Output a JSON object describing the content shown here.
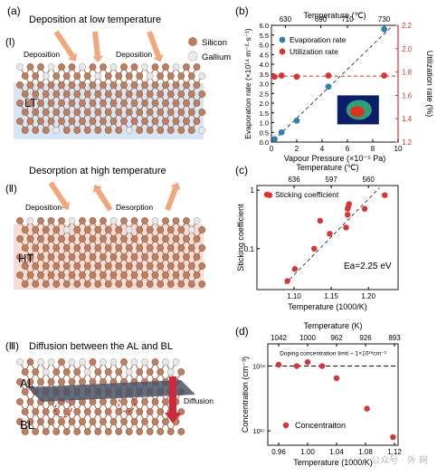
{
  "panel_letters": {
    "a": "(a)",
    "b": "(b)",
    "c": "(c)",
    "d": "(d)"
  },
  "schematic": {
    "row1": {
      "numeral": "(Ⅰ)",
      "title": "Deposition at low temperature",
      "arrow_left": "Deposition",
      "arrow_right": "Deposition",
      "layer": "LT"
    },
    "legend": {
      "silicon": "Silicon",
      "gallium": "Gallium"
    },
    "row2": {
      "numeral": "(Ⅱ)",
      "title": "Desorption at high temperature",
      "arrow_left": "Deposition",
      "arrow_right": "Desorption",
      "layer": "HT"
    },
    "row3": {
      "numeral": "(Ⅲ)",
      "title": "Diffusion between the AL and BL",
      "layer_top": "AL",
      "layer_bottom": "BL",
      "diffusion_label": "Diffusion"
    }
  },
  "colors": {
    "silicon": "#c07f5c",
    "gallium": "#e8e8e8",
    "red": "#dd3232",
    "blue": "#2f7fb0",
    "lt_band": "#d6e6f4",
    "ht_band": "#f6ddd6",
    "arrow": "#f2a77a"
  },
  "watermark": "公众号 · 外 网",
  "chart_data": [
    {
      "id": "b",
      "type": "scatter",
      "top_axis_label": "Temperature (℃)",
      "top_ticks": [
        "630",
        "690",
        "710",
        "730"
      ],
      "xlabel": "Vapour Pressure (×10⁻⁵ Pa)",
      "xlim": [
        0,
        10
      ],
      "x_ticks": [
        "0",
        "2",
        "4",
        "6",
        "8",
        "10"
      ],
      "ylabel": "Evaporation rate (×10¹⁴ m⁻²·s⁻¹)",
      "ylim": [
        0,
        6.0
      ],
      "y_ticks": [
        "0.0",
        "0.5",
        "1.0",
        "1.5",
        "2.0",
        "2.5",
        "3.0",
        "3.5",
        "4.0",
        "4.5",
        "5.0",
        "5.5",
        "6.0"
      ],
      "y2label": "Utilization rate (%)",
      "y2lim": [
        1.2,
        2.2
      ],
      "y2_ticks": [
        "1.2",
        "1.4",
        "1.6",
        "1.8",
        "2.0",
        "2.2"
      ],
      "legend_position": "top-left",
      "series": [
        {
          "name": "Evaporation rate",
          "axis": "left",
          "x": [
            0.25,
            0.8,
            2.0,
            4.5,
            8.9
          ],
          "y": [
            0.15,
            0.5,
            1.1,
            2.85,
            5.8
          ]
        },
        {
          "name": "Utilization rate",
          "axis": "right",
          "x": [
            0.25,
            0.8,
            2.0,
            4.5,
            8.9
          ],
          "y": [
            1.76,
            1.77,
            1.76,
            1.77,
            1.77
          ]
        }
      ]
    },
    {
      "id": "c",
      "type": "scatter",
      "top_axis_label": "Temperature (℃)",
      "top_ticks": [
        "636",
        "597",
        "560"
      ],
      "xlabel": "Temperature (1000/K)",
      "xlim": [
        1.05,
        1.24
      ],
      "x_ticks": [
        "1.10",
        "1.15",
        "1.20"
      ],
      "ylabel": "Sticking coefficient",
      "ylim": [
        0.02,
        1.2
      ],
      "yscale": "log",
      "y_ticks": [
        "0.1",
        "1"
      ],
      "legend_position": "top-left",
      "annotation": "Ea=2.25 eV",
      "series": [
        {
          "name": "Sticking coefficient",
          "x": [
            1.067,
            1.091,
            1.101,
            1.127,
            1.135,
            1.148,
            1.17,
            1.172,
            1.172,
            1.173,
            1.174,
            1.195,
            1.222
          ],
          "y": [
            0.82,
            0.028,
            0.045,
            0.1,
            0.3,
            0.18,
            0.23,
            0.38,
            0.48,
            0.52,
            0.58,
            0.48,
            0.82
          ]
        }
      ]
    },
    {
      "id": "d",
      "type": "scatter",
      "top_axis_label": "Temperature (K)",
      "top_ticks": [
        "1042",
        "1000",
        "962",
        "926",
        "893"
      ],
      "xlabel": "Temperature (1000/K)",
      "xlim": [
        0.945,
        1.125
      ],
      "x_ticks": [
        "0.96",
        "1.00",
        "1.04",
        "1.08",
        "1.12"
      ],
      "ylabel": "Concentration (cm⁻³)",
      "ylim": [
        6e+16,
        2.2e+18
      ],
      "yscale": "log",
      "y_ticks": [
        "10¹⁸",
        "10¹⁷"
      ],
      "reference_line": {
        "label": "Doping concentration limit ~ 1×10¹⁸cm⁻³",
        "y": 1e+18
      },
      "legend_position": "bottom-center",
      "series": [
        {
          "name": "Concentraiton",
          "x": [
            0.96,
            0.985,
            1.0,
            1.02,
            1.04,
            1.082,
            1.118
          ],
          "y": [
            1.05e+18,
            1e+18,
            1.15e+18,
            1e+18,
            6.5e+17,
            2.2e+17,
            8e+16
          ]
        }
      ]
    }
  ]
}
